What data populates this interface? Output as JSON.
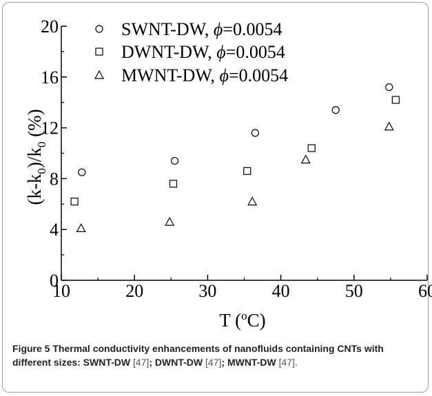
{
  "chart_data": {
    "type": "scatter",
    "title": "",
    "xlabel": "T (oC)",
    "ylabel": "(k-k0)/k0 (%)",
    "xlim": [
      10,
      60
    ],
    "ylim": [
      0,
      20
    ],
    "xticks": [
      10,
      20,
      30,
      40,
      50,
      60
    ],
    "yticks": [
      0,
      4,
      8,
      12,
      16,
      20
    ],
    "grid": false,
    "legend_position": "top-left",
    "series": [
      {
        "name": "SWNT-DW, ϕ=0.0054",
        "label": "SWNT-DW, ",
        "phi": "ϕ",
        "value": "=0.0054",
        "marker": "circle",
        "points": [
          [
            12.8,
            8.5
          ],
          [
            25.5,
            9.4
          ],
          [
            36.5,
            11.6
          ],
          [
            47.5,
            13.4
          ],
          [
            54.8,
            15.2
          ]
        ]
      },
      {
        "name": "DWNT-DW, ϕ=0.0054",
        "label": "DWNT-DW, ",
        "phi": "ϕ",
        "value": "=0.0054",
        "marker": "square",
        "points": [
          [
            11.8,
            6.2
          ],
          [
            25.3,
            7.6
          ],
          [
            35.4,
            8.6
          ],
          [
            44.2,
            10.4
          ],
          [
            55.7,
            14.2
          ]
        ]
      },
      {
        "name": "MWNT-DW, ϕ=0.0054",
        "label": "MWNT-DW, ",
        "phi": "ϕ",
        "value": "=0.0054",
        "marker": "triangle",
        "points": [
          [
            12.7,
            4.1
          ],
          [
            24.8,
            4.6
          ],
          [
            36.1,
            6.2
          ],
          [
            43.4,
            9.5
          ],
          [
            54.8,
            12.1
          ]
        ]
      }
    ]
  },
  "caption": {
    "label": "Figure 5",
    "text1": " Thermal conductivity enhancements of nanofluids containing CNTs with different sizes: SWNT-DW ",
    "ref1": "[47]",
    "text2": "; DWNT-DW ",
    "ref2": "[47]",
    "text3": "; MWNT-DW ",
    "ref3": "[47]",
    "end": "."
  }
}
